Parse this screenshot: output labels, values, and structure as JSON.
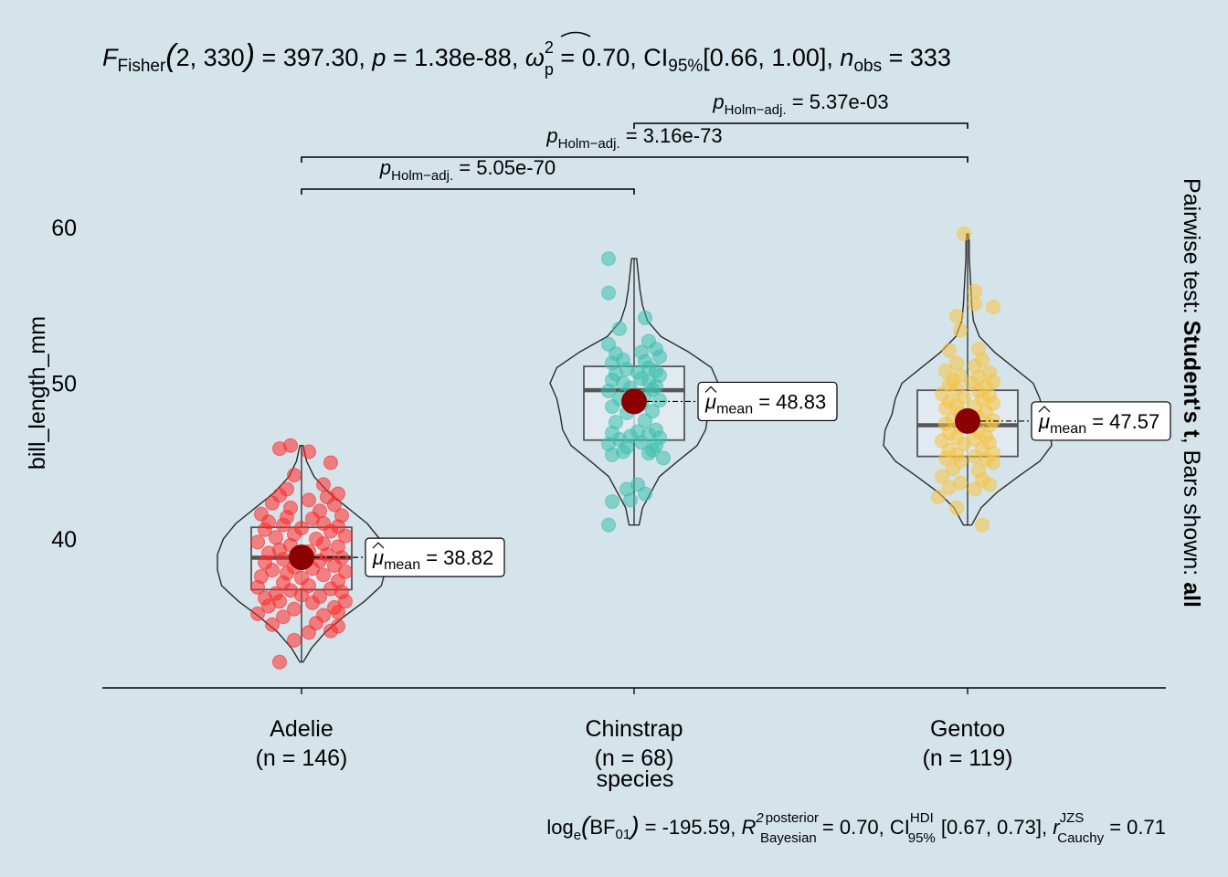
{
  "colors": {
    "background": "#d5e4eb",
    "Adelie": "#ff2a2a",
    "Chinstrap": "#3cbfae",
    "Gentoo": "#f5c342",
    "mean_point": "#8b0000",
    "box_fill": "#e3ecf1",
    "outline": "#2b2b2b"
  },
  "header": {
    "stat_F": "F",
    "stat_F_sub": "Fisher",
    "df": "2, 330",
    "F_value": "397.30",
    "p_label": "p",
    "p_value": "1.38e-88",
    "omega_symbol": "ω",
    "omega_sup": "2",
    "omega_sub": "p",
    "effect_value": "0.70",
    "ci_label": "CI",
    "ci_sub": "95%",
    "ci_range": "[0.66, 1.00]",
    "n_label": "n",
    "n_sub": "obs",
    "n_value": "333"
  },
  "footer": {
    "log_label": "log",
    "log_sub": "e",
    "bf_label": "BF",
    "bf_sub": "01",
    "bf_value": "-195.59",
    "r2_label": "R",
    "r2_sup": "2",
    "r2_sup2": "posterior",
    "r2_sub": "Bayesian",
    "r2_value": "0.70",
    "ci_label": "CI",
    "ci_sup": "HDI",
    "ci_sub": "95%",
    "ci_range": "[0.67, 0.73]",
    "r_label": "r",
    "r_sup": "JZS",
    "r_sub": "Cauchy",
    "r_value": "0.71"
  },
  "side_caption": {
    "prefix": "Pairwise test: ",
    "test": "Student's t",
    "middle": ", Bars shown: ",
    "bars": "all"
  },
  "chart_data": {
    "type": "violin-box-scatter",
    "xlabel": "species",
    "ylabel": "bill_length_mm",
    "ylim": [
      30.5,
      61.5
    ],
    "yticks": [
      40,
      50,
      60
    ],
    "grid": false,
    "groups": [
      {
        "name": "Adelie",
        "n_label": "(n = 146)",
        "mean": 38.82,
        "mean_label": "38.82",
        "q1": 36.75,
        "median": 38.8,
        "q3": 40.75,
        "min": 32.1,
        "max": 46.0,
        "color_key": "Adelie",
        "violin": [
          [
            32.1,
            0.02
          ],
          [
            33,
            0.12
          ],
          [
            34,
            0.28
          ],
          [
            35,
            0.5
          ],
          [
            36,
            0.75
          ],
          [
            37,
            0.95
          ],
          [
            38,
            1.0
          ],
          [
            39,
            1.0
          ],
          [
            40,
            0.93
          ],
          [
            41,
            0.78
          ],
          [
            42,
            0.55
          ],
          [
            43,
            0.32
          ],
          [
            44,
            0.15
          ],
          [
            45,
            0.06
          ],
          [
            46,
            0.02
          ]
        ]
      },
      {
        "name": "Chinstrap",
        "n_label": "(n = 68)",
        "mean": 48.83,
        "mean_label": "48.83",
        "q1": 46.35,
        "median": 49.55,
        "q3": 51.08,
        "min": 40.9,
        "max": 58.0,
        "color_key": "Chinstrap",
        "violin": [
          [
            40.9,
            0.06
          ],
          [
            42,
            0.1
          ],
          [
            43,
            0.2
          ],
          [
            44,
            0.3
          ],
          [
            45,
            0.52
          ],
          [
            46,
            0.75
          ],
          [
            47,
            0.85
          ],
          [
            48,
            0.88
          ],
          [
            49,
            0.92
          ],
          [
            50,
            1.0
          ],
          [
            51,
            0.92
          ],
          [
            52,
            0.65
          ],
          [
            53,
            0.32
          ],
          [
            54,
            0.16
          ],
          [
            55,
            0.1
          ],
          [
            56,
            0.07
          ],
          [
            57,
            0.05
          ],
          [
            58,
            0.03
          ]
        ]
      },
      {
        "name": "Gentoo",
        "n_label": "(n = 119)",
        "mean": 47.57,
        "mean_label": "47.57",
        "q1": 45.3,
        "median": 47.3,
        "q3": 49.55,
        "min": 40.9,
        "max": 59.6,
        "color_key": "Gentoo",
        "violin": [
          [
            40.9,
            0.05
          ],
          [
            42,
            0.16
          ],
          [
            43,
            0.35
          ],
          [
            44,
            0.6
          ],
          [
            45,
            0.86
          ],
          [
            46,
            1.0
          ],
          [
            47,
            0.98
          ],
          [
            48,
            0.9
          ],
          [
            49,
            0.86
          ],
          [
            50,
            0.78
          ],
          [
            51,
            0.55
          ],
          [
            52,
            0.32
          ],
          [
            53,
            0.14
          ],
          [
            54,
            0.07
          ],
          [
            55,
            0.05
          ],
          [
            56,
            0.04
          ],
          [
            57,
            0.03
          ],
          [
            58,
            0.02
          ],
          [
            59,
            0.02
          ],
          [
            59.6,
            0.01
          ]
        ]
      }
    ],
    "points": {
      "Adelie": [
        [
          32.1,
          -0.06
        ],
        [
          33.5,
          -0.02
        ],
        [
          34.0,
          0.02
        ],
        [
          34.1,
          0.08
        ],
        [
          34.4,
          0.1
        ],
        [
          34.5,
          -0.08
        ],
        [
          34.6,
          0.04
        ],
        [
          35.0,
          -0.05
        ],
        [
          35.1,
          0.06
        ],
        [
          35.2,
          -0.12
        ],
        [
          35.3,
          0.1
        ],
        [
          35.5,
          -0.02
        ],
        [
          35.6,
          0.09
        ],
        [
          35.7,
          -0.09
        ],
        [
          35.9,
          0.03
        ],
        [
          36.0,
          -0.06
        ],
        [
          36.0,
          0.12
        ],
        [
          36.2,
          -0.1
        ],
        [
          36.3,
          0.05
        ],
        [
          36.4,
          0.0
        ],
        [
          36.5,
          -0.07
        ],
        [
          36.6,
          0.11
        ],
        [
          36.7,
          -0.03
        ],
        [
          36.8,
          0.08
        ],
        [
          36.9,
          -0.12
        ],
        [
          37.0,
          0.02
        ],
        [
          37.2,
          -0.05
        ],
        [
          37.3,
          0.1
        ],
        [
          37.5,
          0.0
        ],
        [
          37.6,
          -0.11
        ],
        [
          37.7,
          0.06
        ],
        [
          37.8,
          -0.04
        ],
        [
          37.9,
          0.12
        ],
        [
          38.0,
          -0.08
        ],
        [
          38.1,
          0.03
        ],
        [
          38.2,
          -0.02
        ],
        [
          38.3,
          0.09
        ],
        [
          38.5,
          -0.1
        ],
        [
          38.6,
          0.05
        ],
        [
          38.7,
          -0.05
        ],
        [
          38.8,
          0.11
        ],
        [
          38.9,
          -0.01
        ],
        [
          39.0,
          0.07
        ],
        [
          39.1,
          -0.09
        ],
        [
          39.2,
          0.02
        ],
        [
          39.3,
          -0.06
        ],
        [
          39.5,
          0.1
        ],
        [
          39.6,
          -0.03
        ],
        [
          39.7,
          0.06
        ],
        [
          39.8,
          -0.12
        ],
        [
          40.0,
          0.04
        ],
        [
          40.1,
          -0.07
        ],
        [
          40.2,
          0.12
        ],
        [
          40.3,
          -0.02
        ],
        [
          40.5,
          0.08
        ],
        [
          40.6,
          -0.1
        ],
        [
          40.7,
          0.0
        ],
        [
          40.8,
          0.1
        ],
        [
          40.9,
          -0.05
        ],
        [
          41.0,
          0.06
        ],
        [
          41.1,
          -0.09
        ],
        [
          41.3,
          0.03
        ],
        [
          41.4,
          -0.04
        ],
        [
          41.5,
          0.11
        ],
        [
          41.6,
          -0.11
        ],
        [
          41.8,
          0.05
        ],
        [
          42.0,
          -0.03
        ],
        [
          42.2,
          0.09
        ],
        [
          42.3,
          -0.08
        ],
        [
          42.5,
          0.02
        ],
        [
          42.7,
          0.07
        ],
        [
          42.8,
          -0.06
        ],
        [
          42.9,
          0.1
        ],
        [
          43.2,
          -0.04
        ],
        [
          43.5,
          0.06
        ],
        [
          44.1,
          -0.02
        ],
        [
          44.9,
          0.08
        ],
        [
          45.8,
          -0.06
        ],
        [
          46.0,
          -0.03
        ],
        [
          45.6,
          0.02
        ]
      ],
      "Chinstrap": [
        [
          40.9,
          -0.07
        ],
        [
          42.4,
          -0.06
        ],
        [
          42.5,
          -0.01
        ],
        [
          42.9,
          0.03
        ],
        [
          43.2,
          -0.02
        ],
        [
          43.5,
          0.01
        ],
        [
          45.2,
          0.08
        ],
        [
          45.4,
          -0.06
        ],
        [
          45.5,
          0.04
        ],
        [
          45.6,
          -0.03
        ],
        [
          45.7,
          0.05
        ],
        [
          45.9,
          -0.02
        ],
        [
          46.0,
          0.06
        ],
        [
          46.1,
          -0.07
        ],
        [
          46.2,
          0.02
        ],
        [
          46.4,
          -0.04
        ],
        [
          46.5,
          0.07
        ],
        [
          46.6,
          -0.01
        ],
        [
          46.7,
          0.04
        ],
        [
          46.8,
          -0.06
        ],
        [
          46.9,
          0.01
        ],
        [
          47.0,
          0.06
        ],
        [
          47.5,
          -0.05
        ],
        [
          47.6,
          0.03
        ],
        [
          48.1,
          -0.02
        ],
        [
          48.2,
          0.05
        ],
        [
          48.5,
          -0.06
        ],
        [
          48.7,
          0.02
        ],
        [
          48.9,
          0.07
        ],
        [
          49.0,
          -0.04
        ],
        [
          49.2,
          0.03
        ],
        [
          49.5,
          -0.07
        ],
        [
          49.6,
          0.05
        ],
        [
          49.7,
          -0.01
        ],
        [
          49.8,
          0.06
        ],
        [
          50.0,
          -0.03
        ],
        [
          50.1,
          0.04
        ],
        [
          50.2,
          -0.06
        ],
        [
          50.3,
          0.02
        ],
        [
          50.5,
          0.07
        ],
        [
          50.6,
          -0.05
        ],
        [
          50.7,
          0.01
        ],
        [
          50.8,
          0.06
        ],
        [
          50.9,
          -0.02
        ],
        [
          51.0,
          0.04
        ],
        [
          51.3,
          -0.06
        ],
        [
          51.4,
          0.03
        ],
        [
          51.5,
          -0.03
        ],
        [
          51.7,
          0.07
        ],
        [
          51.9,
          -0.05
        ],
        [
          52.0,
          0.02
        ],
        [
          52.2,
          0.06
        ],
        [
          52.5,
          -0.07
        ],
        [
          52.7,
          0.04
        ],
        [
          53.5,
          -0.04
        ],
        [
          54.2,
          0.03
        ],
        [
          55.8,
          -0.07
        ],
        [
          58.0,
          -0.07
        ]
      ],
      "Gentoo": [
        [
          40.9,
          0.04
        ],
        [
          42.0,
          -0.03
        ],
        [
          42.7,
          -0.08
        ],
        [
          43.2,
          0.02
        ],
        [
          43.3,
          -0.05
        ],
        [
          43.5,
          0.06
        ],
        [
          43.6,
          -0.02
        ],
        [
          43.8,
          0.04
        ],
        [
          44.0,
          -0.07
        ],
        [
          44.4,
          0.03
        ],
        [
          44.5,
          -0.04
        ],
        [
          44.9,
          0.07
        ],
        [
          45.0,
          -0.02
        ],
        [
          45.1,
          0.05
        ],
        [
          45.2,
          -0.06
        ],
        [
          45.3,
          0.02
        ],
        [
          45.4,
          -0.03
        ],
        [
          45.5,
          0.07
        ],
        [
          45.7,
          -0.05
        ],
        [
          45.8,
          0.04
        ],
        [
          46.1,
          -0.01
        ],
        [
          46.2,
          0.06
        ],
        [
          46.3,
          -0.07
        ],
        [
          46.4,
          0.02
        ],
        [
          46.5,
          -0.03
        ],
        [
          46.6,
          0.05
        ],
        [
          46.8,
          -0.05
        ],
        [
          46.9,
          0.03
        ],
        [
          47.2,
          -0.02
        ],
        [
          47.3,
          0.06
        ],
        [
          47.4,
          -0.06
        ],
        [
          47.5,
          0.01
        ],
        [
          47.6,
          0.07
        ],
        [
          47.7,
          -0.04
        ],
        [
          47.8,
          0.03
        ],
        [
          48.1,
          -0.02
        ],
        [
          48.2,
          0.05
        ],
        [
          48.4,
          -0.06
        ],
        [
          48.5,
          0.02
        ],
        [
          48.6,
          -0.03
        ],
        [
          48.7,
          0.07
        ],
        [
          48.8,
          -0.05
        ],
        [
          49.0,
          0.04
        ],
        [
          49.1,
          -0.01
        ],
        [
          49.2,
          0.06
        ],
        [
          49.3,
          -0.07
        ],
        [
          49.5,
          0.03
        ],
        [
          49.6,
          -0.03
        ],
        [
          49.8,
          0.05
        ],
        [
          49.9,
          -0.05
        ],
        [
          50.0,
          0.01
        ],
        [
          50.1,
          0.07
        ],
        [
          50.2,
          -0.04
        ],
        [
          50.4,
          0.03
        ],
        [
          50.5,
          -0.02
        ],
        [
          50.7,
          0.06
        ],
        [
          50.8,
          -0.06
        ],
        [
          51.1,
          0.02
        ],
        [
          51.3,
          -0.03
        ],
        [
          51.5,
          0.04
        ],
        [
          52.1,
          -0.05
        ],
        [
          52.2,
          0.03
        ],
        [
          53.4,
          -0.02
        ],
        [
          54.3,
          -0.03
        ],
        [
          55.1,
          0.02
        ],
        [
          55.9,
          0.02
        ],
        [
          54.9,
          0.07
        ],
        [
          59.6,
          -0.01
        ]
      ]
    },
    "brackets": [
      {
        "from": 0,
        "to": 1,
        "level": 0,
        "p_label": "p",
        "p_sub": "Holm−adj.",
        "p_value": "5.05e-70"
      },
      {
        "from": 0,
        "to": 2,
        "level": 1,
        "p_label": "p",
        "p_sub": "Holm−adj.",
        "p_value": "3.16e-73"
      },
      {
        "from": 1,
        "to": 2,
        "level": 2,
        "p_label": "p",
        "p_sub": "Holm−adj.",
        "p_value": "5.37e-03"
      }
    ],
    "mean_label_prefix": "μ",
    "mean_label_sub": "mean"
  }
}
